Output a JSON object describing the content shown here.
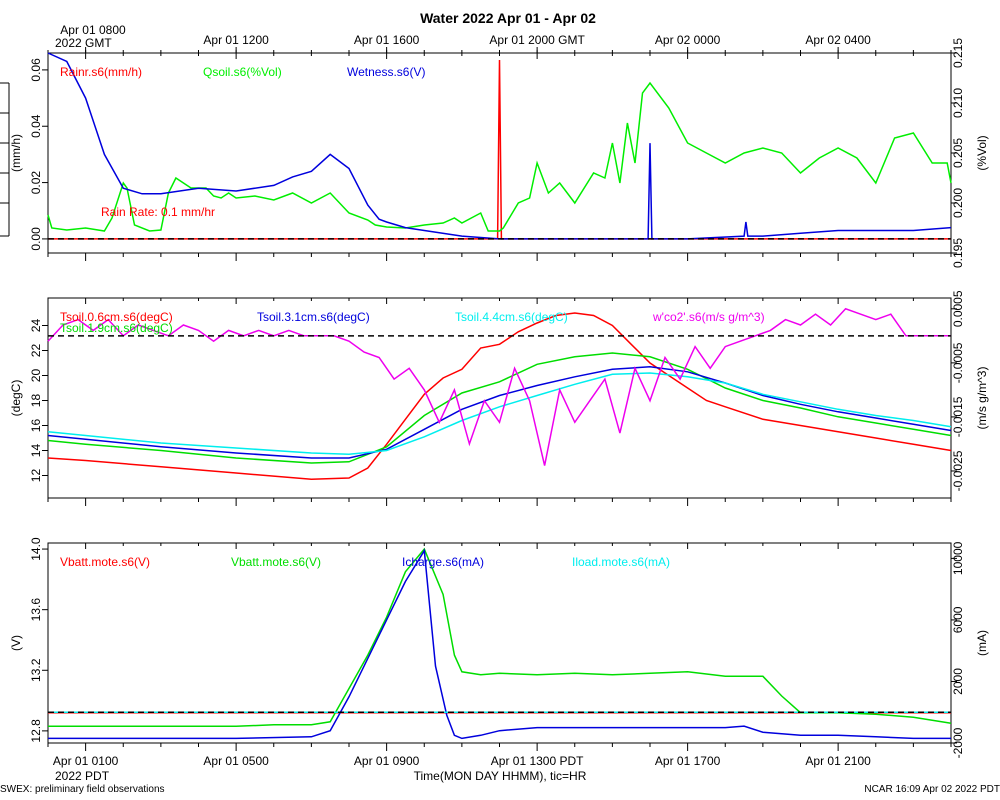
{
  "title": "Water 2022 Apr 01 - Apr 02",
  "top_axis": {
    "ticks": [
      "Apr 01 0800",
      "Apr 01 1200",
      "Apr 01 1600",
      "Apr 01 2000 GMT",
      "Apr 02 0000",
      "Apr 02 0400"
    ],
    "tick_hours": [
      0,
      4,
      8,
      12,
      16,
      20
    ],
    "year_label": "2022 GMT"
  },
  "bottom_axis": {
    "ticks": [
      "Apr 01 0100",
      "Apr 01 0500",
      "Apr 01 0900",
      "Apr 01 1300 PDT",
      "Apr 01 1700",
      "Apr 01 2100"
    ],
    "tick_hours": [
      0,
      4,
      8,
      12,
      16,
      20
    ],
    "year_label": "2022 PDT",
    "xlabel": "Time(MON DAY HHMM), tic=HR"
  },
  "footer": {
    "left": "SWEX: preliminary field observations",
    "right": "NCAR 16:09 Apr 02 2022 PDT"
  },
  "chart_data": [
    {
      "type": "line",
      "panel": "water",
      "x_unit": "hours since Apr 01 0100 PDT",
      "xlim": [
        -1,
        23
      ],
      "left_axis": {
        "label": "(mm/h)",
        "ylim": [
          -0.005,
          0.066
        ],
        "ticks": [
          0.0,
          0.02,
          0.04,
          0.06
        ],
        "tick_labels": [
          "0.00",
          "0.02",
          "0.04",
          "0.06"
        ]
      },
      "right_axis": {
        "label": "(%Vol)",
        "ylim": [
          0.195,
          0.215
        ],
        "ticks": [
          0.195,
          0.2,
          0.205,
          0.21,
          0.215
        ],
        "tick_labels": [
          "0.195",
          "0.200",
          "0.205",
          "0.210",
          "0.215"
        ]
      },
      "annotation": "Rain Rate: 0.1 mm/hr",
      "reference_line": {
        "axis": "left",
        "value": 0.0
      },
      "series": [
        {
          "name": "Rainr.s6(mm/h)",
          "color": "#ff0000",
          "axis": "left",
          "x": [
            -1,
            10.95,
            11.0,
            11.05,
            23
          ],
          "y": [
            0,
            0,
            0.0635,
            0,
            0
          ]
        },
        {
          "name": "Qsoil.s6(%Vol)",
          "color": "#00ee00",
          "axis": "right",
          "x": [
            -1,
            -0.9,
            -0.5,
            0,
            0.5,
            0.7,
            1.0,
            1.1,
            1.3,
            1.7,
            2.0,
            2.2,
            2.4,
            2.8,
            3.2,
            3.4,
            3.6,
            3.8,
            4.0,
            4.5,
            5.0,
            5.5,
            6.0,
            6.5,
            7.0,
            7.5,
            7.7,
            8.0,
            8.5,
            9.0,
            9.5,
            9.8,
            10.0,
            10.5,
            10.7,
            11.0,
            11.1,
            11.5,
            11.8,
            12.0,
            12.3,
            12.6,
            13.0,
            13.5,
            13.8,
            14.0,
            14.2,
            14.4,
            14.6,
            14.8,
            15.0,
            15.5,
            16.0,
            16.5,
            17.0,
            17.5,
            18.0,
            18.5,
            19.0,
            19.5,
            20.0,
            20.5,
            21.0,
            21.5,
            22.0,
            22.5,
            22.9,
            23.0
          ],
          "y": [
            0.1988,
            0.1975,
            0.1973,
            0.1975,
            0.1972,
            0.1985,
            0.202,
            0.2015,
            0.1978,
            0.1972,
            0.1973,
            0.201,
            0.2025,
            0.2015,
            0.2015,
            0.2007,
            0.2005,
            0.201,
            0.2005,
            0.2007,
            0.2003,
            0.201,
            0.2,
            0.201,
            0.199,
            0.1983,
            0.1978,
            0.1976,
            0.1975,
            0.1978,
            0.198,
            0.1985,
            0.198,
            0.199,
            0.1972,
            0.1972,
            0.1975,
            0.2,
            0.2005,
            0.204,
            0.201,
            0.202,
            0.2,
            0.203,
            0.2025,
            0.206,
            0.202,
            0.208,
            0.204,
            0.211,
            0.212,
            0.2095,
            0.206,
            0.205,
            0.204,
            0.205,
            0.2055,
            0.205,
            0.203,
            0.2045,
            0.2055,
            0.2045,
            0.202,
            0.2065,
            0.207,
            0.204,
            0.204,
            0.202
          ]
        },
        {
          "name": "Wetness.s6(V)",
          "color": "#0000dd",
          "axis": "left",
          "x": [
            -1,
            -0.5,
            0,
            0.5,
            1.0,
            1.5,
            2.0,
            3.0,
            4.0,
            5.0,
            5.5,
            6.0,
            6.5,
            7.0,
            7.5,
            7.8,
            8.0,
            8.5,
            9.0,
            10.0,
            11.0,
            12.0,
            13.5,
            14.95,
            15.0,
            15.05,
            16.0,
            17.5,
            17.55,
            17.6,
            18.0,
            19.0,
            20.0,
            21.0,
            22.0,
            23.0
          ],
          "y": [
            0.066,
            0.063,
            0.05,
            0.03,
            0.018,
            0.016,
            0.016,
            0.018,
            0.017,
            0.019,
            0.022,
            0.024,
            0.03,
            0.025,
            0.012,
            0.007,
            0.006,
            0.004,
            0.003,
            0.001,
            0.0,
            0.0,
            0.0,
            0.0,
            0.034,
            0.0,
            0.0,
            0.001,
            0.006,
            0.001,
            0.001,
            0.002,
            0.003,
            0.003,
            0.003,
            0.004
          ]
        }
      ]
    },
    {
      "type": "line",
      "panel": "soil temperature",
      "x_unit": "hours since Apr 01 0100 PDT",
      "xlim": [
        -1,
        23
      ],
      "left_axis": {
        "label": "(degC)",
        "ylim": [
          10.2,
          26.2
        ],
        "ticks": [
          12,
          14,
          16,
          18,
          20,
          22,
          24
        ],
        "tick_labels": [
          "12",
          "14",
          "16",
          "18",
          "20",
          "22",
          "24"
        ]
      },
      "right_axis": {
        "label": "(m/s g/m^3)",
        "ylim": [
          -0.003,
          0.0007
        ],
        "ticks": [
          0.0005,
          -0.0005,
          -0.0015,
          -0.0025
        ],
        "tick_labels": [
          "0.0005",
          "-0.0005",
          "-0.0015",
          "-0.0025"
        ]
      },
      "reference_line": {
        "axis": "right",
        "value": 0.0
      },
      "series": [
        {
          "name": "Tsoil.0.6cm.s6(degC)",
          "color": "#ff0000",
          "axis": "left",
          "x": [
            -1,
            0,
            2,
            4,
            6,
            7,
            7.5,
            8,
            8.5,
            9,
            9.5,
            10,
            10.5,
            11,
            11.5,
            12,
            12.5,
            13,
            13.5,
            14,
            14.5,
            15,
            15.5,
            16,
            16.5,
            17,
            18,
            19,
            20,
            21,
            22,
            23
          ],
          "y": [
            13.4,
            13.2,
            12.7,
            12.2,
            11.7,
            11.8,
            12.6,
            14.5,
            16.5,
            18.5,
            19.8,
            20.5,
            22.2,
            22.5,
            23.5,
            24.2,
            24.8,
            25.0,
            24.8,
            24.0,
            22.5,
            21.0,
            20.0,
            19.0,
            18.0,
            17.5,
            16.5,
            16.0,
            15.5,
            15.0,
            14.5,
            14.0
          ]
        },
        {
          "name": "Tsoil.1.9cm.s6(degC)",
          "color": "#00dd00",
          "axis": "left",
          "x": [
            -1,
            0,
            2,
            4,
            6,
            7,
            8,
            9,
            10,
            11,
            12,
            13,
            14,
            15,
            16,
            17,
            18,
            19,
            20,
            21,
            22,
            23
          ],
          "y": [
            14.8,
            14.5,
            14.0,
            13.4,
            13.0,
            13.1,
            14.3,
            16.8,
            18.6,
            19.5,
            20.9,
            21.5,
            21.8,
            21.5,
            20.5,
            19.0,
            18.0,
            17.4,
            16.7,
            16.2,
            15.7,
            15.2
          ]
        },
        {
          "name": "Tsoil.3.1cm.s6(degC)",
          "color": "#0000dd",
          "axis": "left",
          "x": [
            -1,
            0,
            2,
            4,
            6,
            7,
            8,
            9,
            10,
            11,
            12,
            13,
            14,
            15,
            16,
            17,
            18,
            19,
            20,
            21,
            22,
            23
          ],
          "y": [
            15.2,
            14.9,
            14.3,
            13.8,
            13.4,
            13.4,
            14.1,
            15.7,
            17.3,
            18.4,
            19.2,
            19.9,
            20.5,
            20.7,
            20.3,
            19.4,
            18.4,
            17.7,
            17.1,
            16.6,
            16.1,
            15.6
          ]
        },
        {
          "name": "Tsoil.4.4cm.s6(degC)",
          "color": "#00eeee",
          "axis": "left",
          "x": [
            -1,
            0,
            2,
            4,
            6,
            7,
            8,
            9,
            10,
            11,
            12,
            13,
            14,
            15,
            16,
            17,
            18,
            19,
            20,
            21,
            22,
            23
          ],
          "y": [
            15.5,
            15.2,
            14.6,
            14.2,
            13.8,
            13.7,
            14.0,
            15.1,
            16.4,
            17.5,
            18.4,
            19.3,
            20.1,
            20.2,
            19.9,
            19.4,
            18.5,
            17.9,
            17.3,
            16.8,
            16.4,
            15.9
          ]
        },
        {
          "name": "w'co2'.s6(m/s g/m^3)",
          "color": "#ee00ee",
          "axis": "right",
          "x": [
            -1,
            -0.6,
            -0.2,
            0.2,
            0.6,
            1.0,
            1.4,
            1.8,
            2.2,
            2.6,
            3.0,
            3.4,
            3.8,
            4.2,
            4.6,
            5.0,
            5.4,
            5.8,
            6.2,
            6.6,
            7.0,
            7.4,
            7.8,
            8.2,
            8.6,
            9.0,
            9.4,
            9.8,
            10.2,
            10.6,
            11.0,
            11.4,
            11.8,
            12.2,
            12.6,
            13.0,
            13.4,
            13.8,
            14.2,
            14.6,
            15.0,
            15.4,
            15.8,
            16.2,
            16.6,
            17.0,
            17.4,
            17.8,
            18.2,
            18.6,
            19.0,
            19.4,
            19.8,
            20.2,
            20.6,
            21.0,
            21.4,
            21.8,
            22.2,
            22.6,
            23.0
          ],
          "y": [
            -0.0001,
            0.0002,
            0.0003,
            0.0001,
            0.0003,
            0.0,
            0.0002,
            0.0001,
            0.0,
            0.0002,
            0.0001,
            -0.0001,
            0.0001,
            0.0,
            0.0001,
            0.0,
            0.0001,
            0.0,
            0.0,
            0.0,
            -0.0001,
            -0.0003,
            -0.0004,
            -0.0008,
            -0.0006,
            -0.001,
            -0.0016,
            -0.001,
            -0.002,
            -0.0012,
            -0.0016,
            -0.0006,
            -0.0012,
            -0.0024,
            -0.001,
            -0.0016,
            -0.0012,
            -0.0008,
            -0.0018,
            -0.0006,
            -0.0012,
            -0.0004,
            -0.0008,
            -0.0002,
            -0.0006,
            -0.0002,
            -0.0001,
            0.0,
            0.0001,
            0.0003,
            0.0002,
            0.0004,
            0.0002,
            0.0005,
            0.0004,
            0.0003,
            0.0004,
            0.0,
            0.0,
            0.0,
            0.0
          ]
        }
      ]
    },
    {
      "type": "line",
      "panel": "power",
      "x_unit": "hours since Apr 01 0100 PDT",
      "xlim": [
        -1,
        23
      ],
      "left_axis": {
        "label": "(V)",
        "ylim": [
          12.72,
          14.04
        ],
        "ticks": [
          12.8,
          13.2,
          13.6,
          14.0
        ],
        "tick_labels": [
          "12.8",
          "13.2",
          "13.6",
          "14.0"
        ]
      },
      "right_axis": {
        "label": "(mA)",
        "ylim": [
          -2000,
          11000
        ],
        "ticks": [
          -2000,
          2000,
          6000,
          10000
        ],
        "tick_labels": [
          "-2000",
          "2000",
          "6000",
          "10000"
        ]
      },
      "reference_line": {
        "axis": "right",
        "value": 0
      },
      "series": [
        {
          "name": "Vbatt.mote.s6(V)",
          "color": "#ff0000",
          "axis": "left",
          "x": [
            -1,
            23
          ],
          "y": [
            12.92,
            12.92
          ]
        },
        {
          "name": "Vbatt.mote.s6(V)",
          "color": "#00dd00",
          "axis": "left",
          "x": [
            -1,
            0,
            1,
            2,
            3,
            4,
            5,
            6,
            6.5,
            7,
            7.5,
            8,
            8.5,
            9,
            9.5,
            9.8,
            10,
            10.5,
            11,
            12,
            13,
            14,
            15,
            16,
            17,
            18,
            18.5,
            19,
            20,
            21,
            22,
            23
          ],
          "y": [
            12.83,
            12.83,
            12.83,
            12.83,
            12.83,
            12.83,
            12.84,
            12.84,
            12.86,
            13.08,
            13.3,
            13.55,
            13.85,
            14.0,
            13.7,
            13.3,
            13.19,
            13.17,
            13.18,
            13.17,
            13.18,
            13.17,
            13.18,
            13.19,
            13.16,
            13.16,
            13.03,
            12.92,
            12.92,
            12.91,
            12.89,
            12.85
          ]
        },
        {
          "name": "Icharge.s6(mA)",
          "color": "#0000dd",
          "axis": "right",
          "x": [
            -1,
            0,
            2,
            4,
            6,
            6.5,
            7,
            7.5,
            8,
            8.5,
            9,
            9.3,
            9.6,
            9.8,
            10,
            10.5,
            11,
            12,
            13,
            14,
            15,
            16,
            17,
            17.5,
            18,
            19,
            20,
            21,
            22,
            23
          ],
          "y": [
            -1700,
            -1700,
            -1700,
            -1700,
            -1600,
            -1200,
            1000,
            3500,
            6000,
            8500,
            10500,
            3000,
            -200,
            -1500,
            -1700,
            -1500,
            -1200,
            -1000,
            -1000,
            -1000,
            -1000,
            -1000,
            -1000,
            -900,
            -1300,
            -1500,
            -1500,
            -1600,
            -1700,
            -1700
          ]
        },
        {
          "name": "Iload.mote.s6(mA)",
          "color": "#00eeee",
          "axis": "right",
          "x": [
            -1,
            23
          ],
          "y": [
            0,
            0
          ]
        }
      ]
    }
  ],
  "panel_legends": [
    [
      "Rainr.s6(mm/h)",
      "Qsoil.s6(%Vol)",
      "Wetness.s6(V)"
    ],
    [
      "Tsoil.0.6cm.s6(degC)",
      "Tsoil.1.9cm.s6(degC)",
      "Tsoil.3.1cm.s6(degC)",
      "Tsoil.4.4cm.s6(degC)",
      "w'co2'.s6(m/s g/m^3)"
    ],
    [
      "Vbatt.mote.s6(V)",
      "Vbatt.mote.s6(V)",
      "Icharge.s6(mA)",
      "Iload.mote.s6(mA)"
    ]
  ],
  "colors": {
    "red": "#ff0000",
    "green": "#00ee00",
    "blue": "#0000dd",
    "cyan": "#00eeee",
    "magenta": "#ee00ee",
    "dashed": "#000000"
  }
}
